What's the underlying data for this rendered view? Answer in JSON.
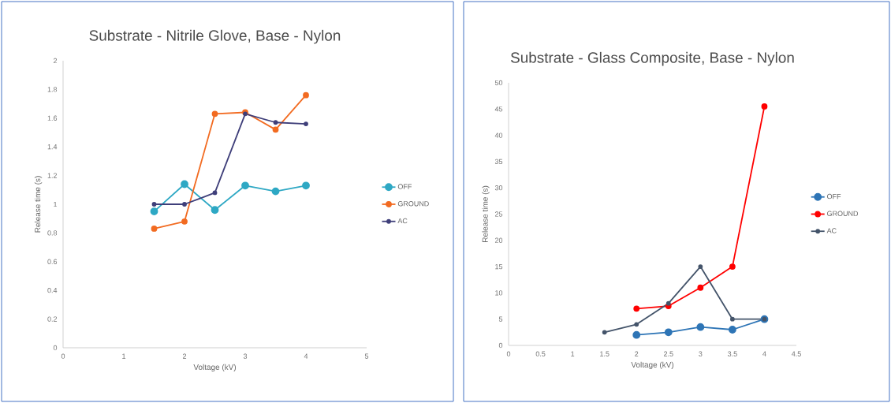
{
  "chart_data": [
    {
      "type": "line",
      "title": "Substrate - Nitrile Glove, Base - Nylon",
      "xlabel": "Voltage (kV)",
      "ylabel": "Release time (s)",
      "x": [
        1.5,
        2,
        2.5,
        3,
        3.5,
        4
      ],
      "series": [
        {
          "name": "OFF",
          "color": "#2ea8c4",
          "values": [
            0.95,
            1.14,
            0.96,
            1.13,
            1.09,
            1.13
          ]
        },
        {
          "name": "GROUND",
          "color": "#f26b21",
          "values": [
            0.83,
            0.88,
            1.63,
            1.64,
            1.52,
            1.76
          ]
        },
        {
          "name": "AC",
          "color": "#3f3f7a",
          "values": [
            1.0,
            1.0,
            1.08,
            1.63,
            1.57,
            1.56
          ]
        }
      ],
      "xlim": [
        0,
        5
      ],
      "xticks": [
        0,
        1,
        2,
        3,
        4,
        5
      ],
      "ylim": [
        0,
        2
      ],
      "yticks": [
        0,
        0.2,
        0.4,
        0.6,
        0.8,
        1,
        1.2,
        1.4,
        1.6,
        1.8,
        2
      ],
      "marker": "circle",
      "legend": "right"
    },
    {
      "type": "line",
      "title": "Substrate - Glass Composite, Base - Nylon",
      "xlabel": "Voltage (kV)",
      "ylabel": "Release time (s)",
      "series": [
        {
          "name": "OFF",
          "color": "#2e75b6",
          "x": [
            2,
            2.5,
            3,
            3.5,
            4
          ],
          "values": [
            2,
            2.5,
            3.5,
            3,
            5
          ]
        },
        {
          "name": "GROUND",
          "color": "#ff0000",
          "x": [
            2,
            2.5,
            3,
            3.5,
            4
          ],
          "values": [
            7,
            7.5,
            11,
            15,
            45.5
          ]
        },
        {
          "name": "AC",
          "color": "#44546a",
          "x": [
            1.5,
            2,
            2.5,
            3,
            3.5,
            4
          ],
          "values": [
            2.5,
            4,
            8,
            15,
            5,
            5
          ]
        }
      ],
      "xlim": [
        0,
        4.5
      ],
      "xticks": [
        0,
        0.5,
        1,
        1.5,
        2,
        2.5,
        3,
        3.5,
        4,
        4.5
      ],
      "ylim": [
        0,
        50
      ],
      "yticks": [
        0,
        5,
        10,
        15,
        20,
        25,
        30,
        35,
        40,
        45,
        50
      ],
      "marker": "circle",
      "legend": "right"
    }
  ]
}
